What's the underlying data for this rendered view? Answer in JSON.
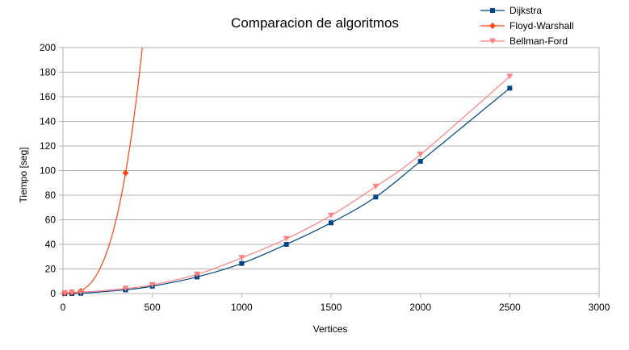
{
  "chart_data": {
    "type": "line",
    "title": "Comparacion de algoritmos",
    "xlabel": "Vertices",
    "ylabel": "Tiempo [seg]",
    "xlim": [
      0,
      3000
    ],
    "ylim": [
      0,
      200
    ],
    "xticks": [
      0,
      500,
      1000,
      1500,
      2000,
      2500,
      3000
    ],
    "yticks": [
      0,
      20,
      40,
      60,
      80,
      100,
      120,
      140,
      160,
      180,
      200
    ],
    "grid": "horizontal",
    "legend_position": "top-right",
    "series": [
      {
        "name": "Dijkstra",
        "color": "#004586",
        "marker": "square",
        "x": [
          10,
          50,
          100,
          350,
          500,
          750,
          1000,
          1250,
          1500,
          1750,
          2000,
          2500
        ],
        "y": [
          0,
          0,
          0.2,
          3,
          6,
          13.5,
          24.5,
          40,
          57.5,
          78.5,
          107.5,
          167
        ]
      },
      {
        "name": "Floyd-Warshall",
        "color": "#ff420e",
        "marker": "diamond",
        "x": [
          10,
          50,
          100,
          350
        ],
        "y": [
          0.5,
          1,
          2,
          98
        ]
      },
      {
        "name": "Bellman-Ford",
        "color": "#ff8080",
        "marker": "triangle-down",
        "x": [
          10,
          50,
          100,
          350,
          500,
          750,
          1000,
          1250,
          1500,
          1750,
          2000,
          2500
        ],
        "y": [
          0.5,
          1,
          1,
          4,
          7,
          15.5,
          29,
          44.5,
          63.5,
          87,
          113,
          176.5
        ]
      }
    ]
  }
}
